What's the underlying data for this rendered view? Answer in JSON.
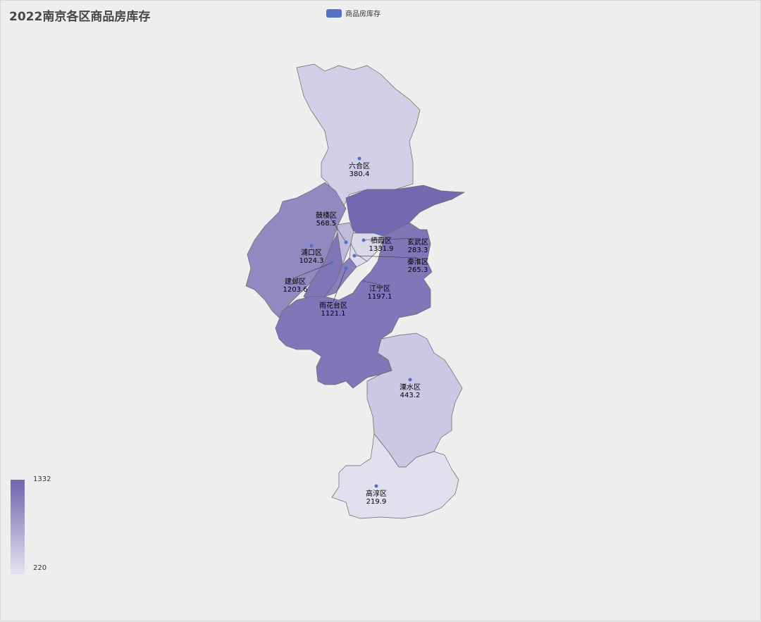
{
  "title": "2022南京各区商品房库存",
  "legend": {
    "label": "商品房库存",
    "color": "#5470c6"
  },
  "visual_map": {
    "min": 220,
    "max": 1332,
    "min_label": "220",
    "max_label": "1332",
    "color_low": "#e0e0ee",
    "color_high": "#7468b0"
  },
  "chart_data": {
    "type": "map",
    "title": "2022南京各区商品房库存",
    "series": [
      {
        "name": "商品房库存",
        "data": [
          {
            "name": "六合区",
            "value": "380.4"
          },
          {
            "name": "栖霞区",
            "value": "1331.9"
          },
          {
            "name": "浦口区",
            "value": "1024.3"
          },
          {
            "name": "鼓楼区",
            "value": "568.5"
          },
          {
            "name": "玄武区",
            "value": "283.3"
          },
          {
            "name": "秦淮区",
            "value": "265.3"
          },
          {
            "name": "建邺区",
            "value": "1203.6"
          },
          {
            "name": "雨花台区",
            "value": "1121.1"
          },
          {
            "name": "江宁区",
            "value": "1197.1"
          },
          {
            "name": "溧水区",
            "value": "443.2"
          },
          {
            "name": "高淳区",
            "value": "219.9"
          }
        ]
      }
    ]
  }
}
